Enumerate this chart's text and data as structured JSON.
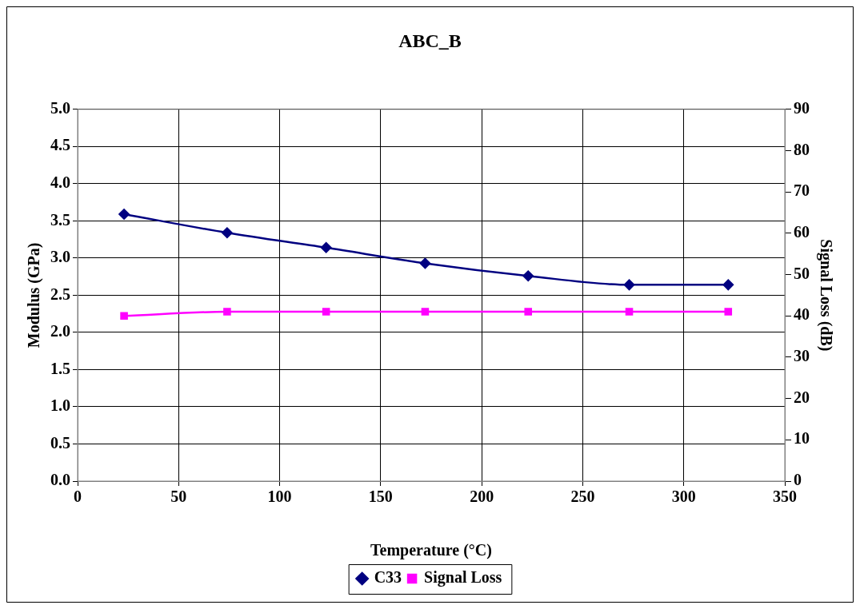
{
  "chart_data": {
    "type": "line",
    "title": "ABC_B",
    "xlabel": "Temperature (°C)",
    "ylabel": "Modulus (GPa)",
    "y2label": "Signal Loss (dB)",
    "x": [
      23,
      74,
      123,
      172,
      223,
      273,
      322
    ],
    "series": [
      {
        "name": "C33",
        "color": "#000080",
        "marker": "diamond",
        "values": [
          3.59,
          3.34,
          3.14,
          2.93,
          2.76,
          2.64,
          2.64
        ]
      },
      {
        "name": "Signal Loss",
        "color": "#ff00ff",
        "marker": "square",
        "axis": "y2",
        "values": [
          40,
          41,
          41,
          41,
          41,
          41,
          41
        ]
      }
    ],
    "xlim": [
      0,
      350
    ],
    "xticks": [
      0,
      50,
      100,
      150,
      200,
      250,
      300,
      350
    ],
    "ylim": [
      0,
      5
    ],
    "yticks": [
      {
        "value": 0,
        "label": "0.0"
      },
      {
        "value": 0.5,
        "label": "0.5"
      },
      {
        "value": 1,
        "label": "1.0"
      },
      {
        "value": 1.5,
        "label": "1.5"
      },
      {
        "value": 2,
        "label": "2.0"
      },
      {
        "value": 2.5,
        "label": "2.5"
      },
      {
        "value": 3,
        "label": "3.0"
      },
      {
        "value": 3.5,
        "label": "3.5"
      },
      {
        "value": 4,
        "label": "4.0"
      },
      {
        "value": 4.5,
        "label": "4.5"
      },
      {
        "value": 5,
        "label": "5.0"
      }
    ],
    "y2lim": [
      0,
      90
    ],
    "y2ticks": [
      0,
      10,
      20,
      30,
      40,
      50,
      60,
      70,
      80,
      90
    ],
    "grid": true,
    "legend": "bottom",
    "line_style": "solid"
  }
}
